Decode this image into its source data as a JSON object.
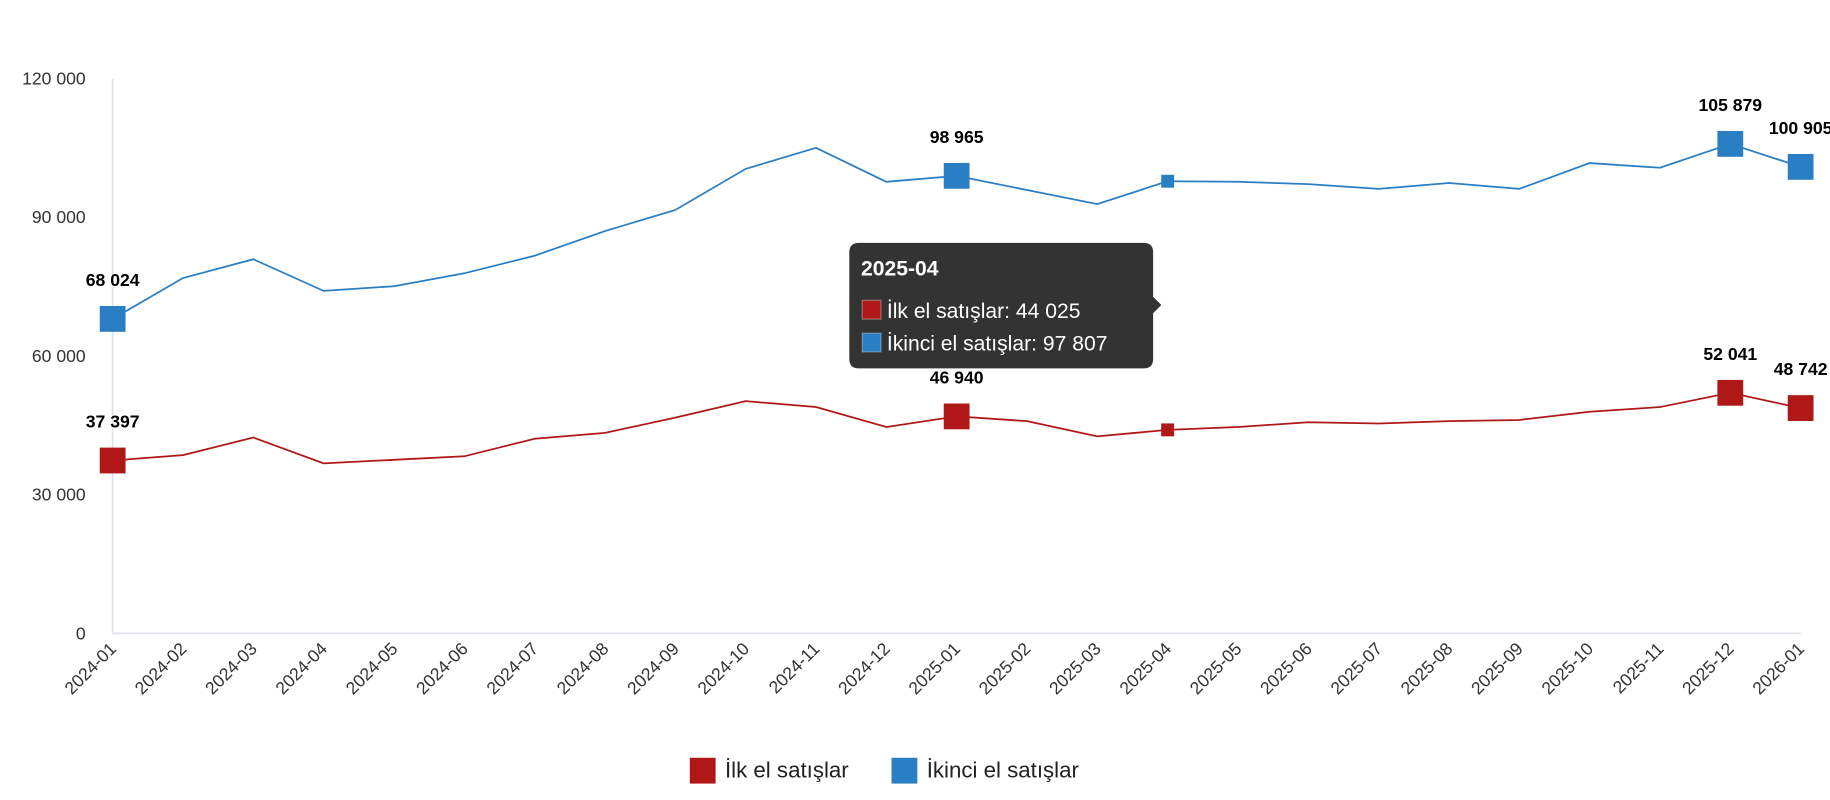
{
  "chart_data": {
    "type": "line",
    "title": "",
    "xlabel": "",
    "ylabel": "",
    "ylim": [
      0,
      120000
    ],
    "yticks": [
      0,
      30000,
      60000,
      90000,
      120000
    ],
    "ytick_labels": [
      "0",
      "30 000",
      "60 000",
      "90 000",
      "120 000"
    ],
    "grid": false,
    "legend_position": "bottom",
    "categories": [
      "2024-01",
      "2024-02",
      "2024-03",
      "2024-04",
      "2024-05",
      "2024-06",
      "2024-07",
      "2024-08",
      "2024-09",
      "2024-10",
      "2024-11",
      "2024-12",
      "2025-01",
      "2025-02",
      "2025-03",
      "2025-04",
      "2025-05",
      "2025-06",
      "2025-07",
      "2025-08",
      "2025-09",
      "2025-10",
      "2025-11",
      "2025-12",
      "2026-01"
    ],
    "series": [
      {
        "name": "İlk el satışlar",
        "color": "#b01818",
        "values": [
          37397,
          38560,
          42370,
          36790,
          37550,
          38310,
          42110,
          43380,
          46680,
          50230,
          48960,
          44650,
          46940,
          45920,
          42620,
          44025,
          44650,
          45670,
          45410,
          45920,
          46170,
          47950,
          48960,
          52041,
          48742
        ],
        "labeled_points": {
          "0": "37 397",
          "12": "46 940",
          "23": "52 041",
          "24": "48 742"
        }
      },
      {
        "name": "İkinci el satışlar",
        "color": "#2a7fc4",
        "values": [
          68024,
          76870,
          80930,
          74080,
          75100,
          77890,
          81690,
          87020,
          91590,
          100470,
          105030,
          97680,
          98965,
          95900,
          92850,
          97807,
          97680,
          97170,
          96150,
          97420,
          96150,
          101730,
          100720,
          105879,
          100905
        ],
        "labeled_points": {
          "0": "68 024",
          "12": "98 965",
          "23": "105 879",
          "24": "100 905"
        }
      }
    ],
    "tooltip": {
      "title": "2025-04",
      "rows": [
        {
          "label": "İlk el satışlar: 44 025",
          "color": "#b01818"
        },
        {
          "label": "İkinci el satışlar: 97 807",
          "color": "#2a7fc4"
        }
      ],
      "hover_index": 15
    }
  }
}
